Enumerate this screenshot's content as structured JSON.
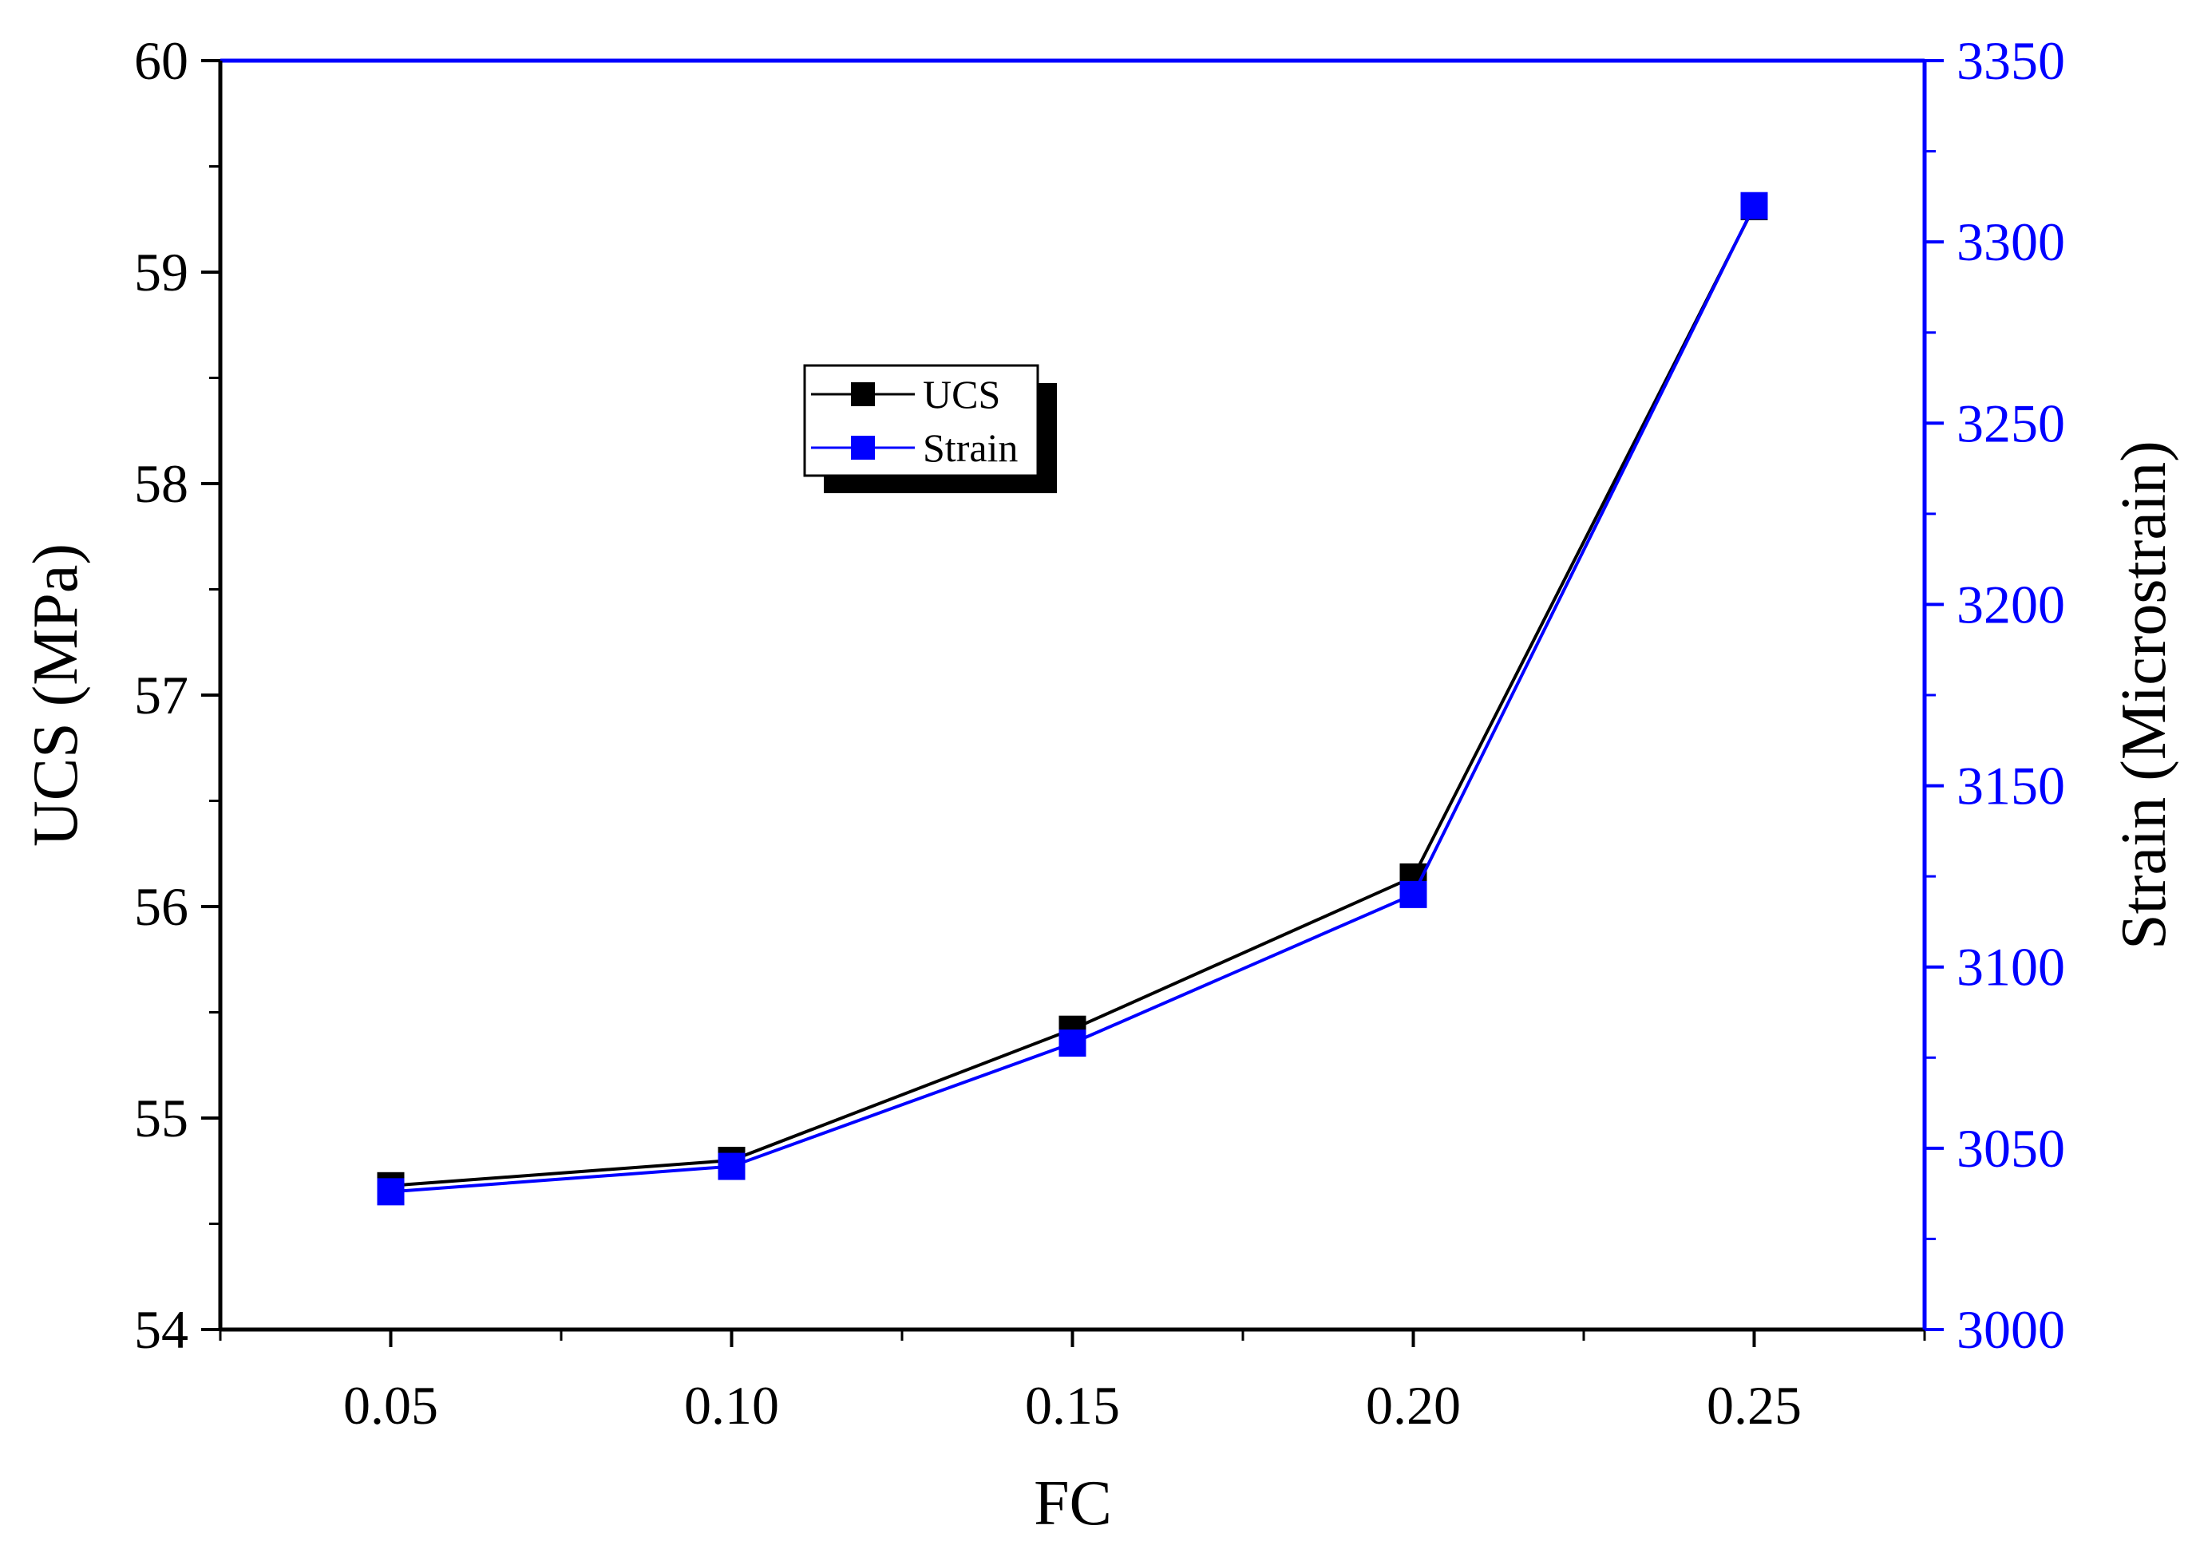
{
  "chart_data": {
    "type": "line",
    "x": [
      0.05,
      0.1,
      0.15,
      0.2,
      0.25
    ],
    "x_tick_labels": [
      "0.05",
      "0.10",
      "0.15",
      "0.20",
      "0.25"
    ],
    "xlabel": "FC",
    "xlim": [
      0.025,
      0.275
    ],
    "ylabel_left": "UCS (MPa)",
    "ylim_left": [
      54,
      60
    ],
    "y_left_tick_labels": [
      "54",
      "55",
      "56",
      "57",
      "58",
      "59",
      "60"
    ],
    "ylabel_right": "Strain (Microstrain)",
    "ylim_right": [
      3000,
      3350
    ],
    "y_right_tick_labels": [
      "3000",
      "3050",
      "3100",
      "3150",
      "3200",
      "3250",
      "3300",
      "3350"
    ],
    "series": [
      {
        "name": "UCS",
        "axis": "left",
        "color": "#000000",
        "marker": "square",
        "values": [
          54.68,
          54.8,
          55.42,
          56.14,
          59.31
        ]
      },
      {
        "name": "Strain",
        "axis": "right",
        "color": "#0000ff",
        "marker": "square",
        "values": [
          3038,
          3045,
          3079,
          3120,
          3310
        ]
      }
    ],
    "legend_position": "upper-left-center",
    "grid": false
  },
  "colors": {
    "left_axis": "#000000",
    "right_axis": "#0000ff"
  }
}
